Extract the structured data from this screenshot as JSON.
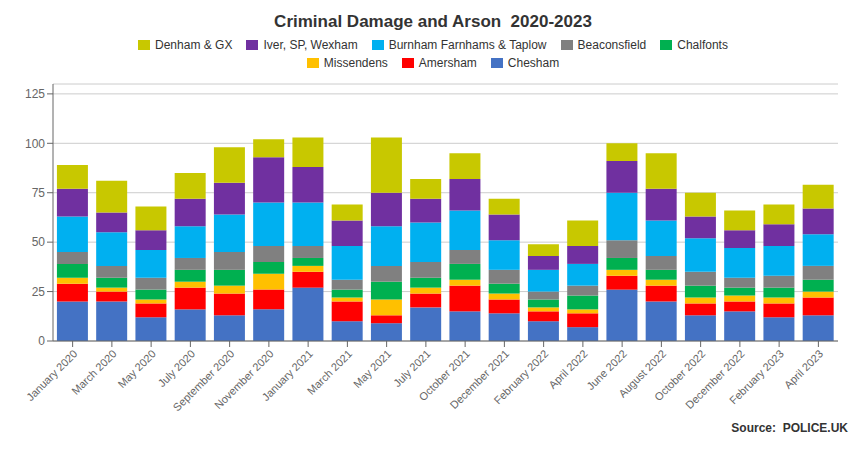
{
  "chart_data": {
    "type": "bar",
    "title": "Criminal Damage and Arson  2020-2023",
    "annotations": [
      "Source:  POLICE.UK"
    ],
    "categories": [
      "January 2020",
      "March 2020",
      "May 2020",
      "July 2020",
      "September 2020",
      "November 2020",
      "January 2021",
      "March 2021",
      "May 2021",
      "July 2021",
      "October 2021",
      "December 2021",
      "February 2022",
      "April 2022",
      "June 2022",
      "August 2022",
      "October 2022",
      "December 2022",
      "February 2023",
      "April 2023"
    ],
    "series": [
      {
        "name": "Chesham",
        "color": "#4472C4",
        "values": [
          20,
          20,
          12,
          16,
          13,
          16,
          27,
          10,
          9,
          17,
          15,
          14,
          10,
          7,
          26,
          20,
          13,
          15,
          12,
          13
        ]
      },
      {
        "name": "Amersham",
        "color": "#FF0000",
        "values": [
          9,
          5,
          7,
          11,
          11,
          10,
          8,
          10,
          4,
          7,
          13,
          7,
          5,
          7,
          7,
          8,
          6,
          5,
          7,
          9
        ]
      },
      {
        "name": "Missendens",
        "color": "#FFC000",
        "values": [
          3,
          2,
          2,
          3,
          4,
          8,
          3,
          2,
          8,
          3,
          3,
          3,
          2,
          2,
          3,
          3,
          3,
          3,
          3,
          3
        ]
      },
      {
        "name": "Chalfonts",
        "color": "#00B050",
        "values": [
          7,
          5,
          5,
          6,
          8,
          6,
          4,
          4,
          9,
          5,
          8,
          5,
          4,
          7,
          6,
          5,
          6,
          4,
          5,
          6
        ]
      },
      {
        "name": "Beaconsfield",
        "color": "#808080",
        "values": [
          6,
          6,
          6,
          6,
          9,
          8,
          6,
          5,
          8,
          8,
          7,
          7,
          4,
          5,
          9,
          7,
          7,
          5,
          6,
          7
        ]
      },
      {
        "name": "Burnham Farnhams & Taplow",
        "color": "#00B0F0",
        "values": [
          18,
          17,
          14,
          16,
          19,
          22,
          22,
          17,
          20,
          20,
          20,
          15,
          11,
          11,
          24,
          18,
          17,
          15,
          15,
          16
        ]
      },
      {
        "name": "Iver, SP, Wexham",
        "color": "#7030A0",
        "values": [
          14,
          10,
          10,
          14,
          16,
          23,
          18,
          13,
          17,
          12,
          16,
          13,
          7,
          9,
          16,
          16,
          11,
          9,
          11,
          13
        ]
      },
      {
        "name": "Denham & GX",
        "color": "#C8C800",
        "values": [
          12,
          16,
          12,
          13,
          18,
          9,
          15,
          8,
          28,
          10,
          13,
          8,
          6,
          13,
          9,
          18,
          12,
          10,
          10,
          12
        ]
      }
    ],
    "stacked": true,
    "ylim": [
      0,
      130
    ],
    "yticks": [
      0,
      25,
      50,
      75,
      100,
      125
    ],
    "grid": true,
    "legend": "top"
  }
}
